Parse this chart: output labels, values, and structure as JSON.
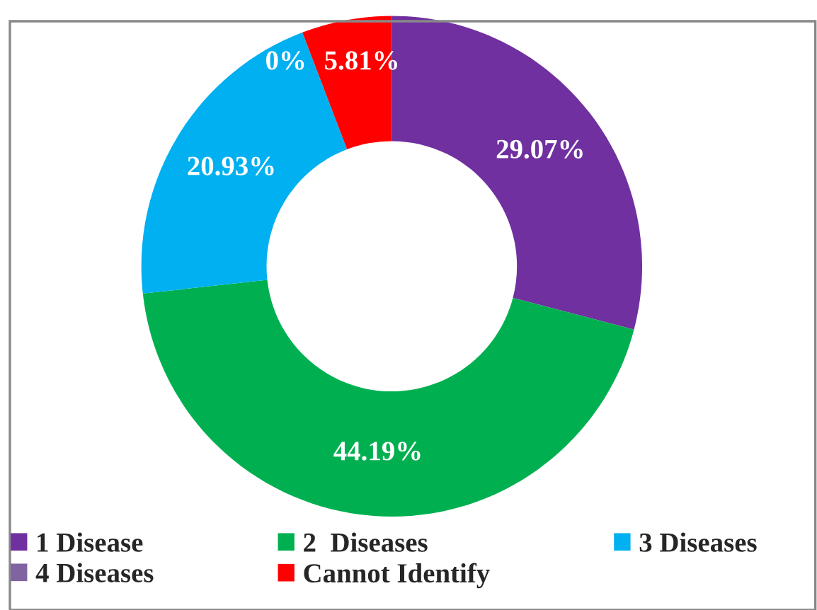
{
  "chart_data": {
    "type": "donut",
    "categories": [
      "1 Disease",
      "2  Diseases",
      "3 Diseases",
      "4 Diseases",
      "Cannot Identify"
    ],
    "values": [
      29.07,
      44.19,
      20.93,
      0,
      5.81
    ],
    "colors": [
      "#7030a0",
      "#00b050",
      "#00b0f0",
      "#8064a2",
      "#ff0000"
    ],
    "value_labels": [
      "29.07%",
      "44.19%",
      "20.93%",
      "0%",
      "5.81%"
    ],
    "legend": "bottom"
  }
}
